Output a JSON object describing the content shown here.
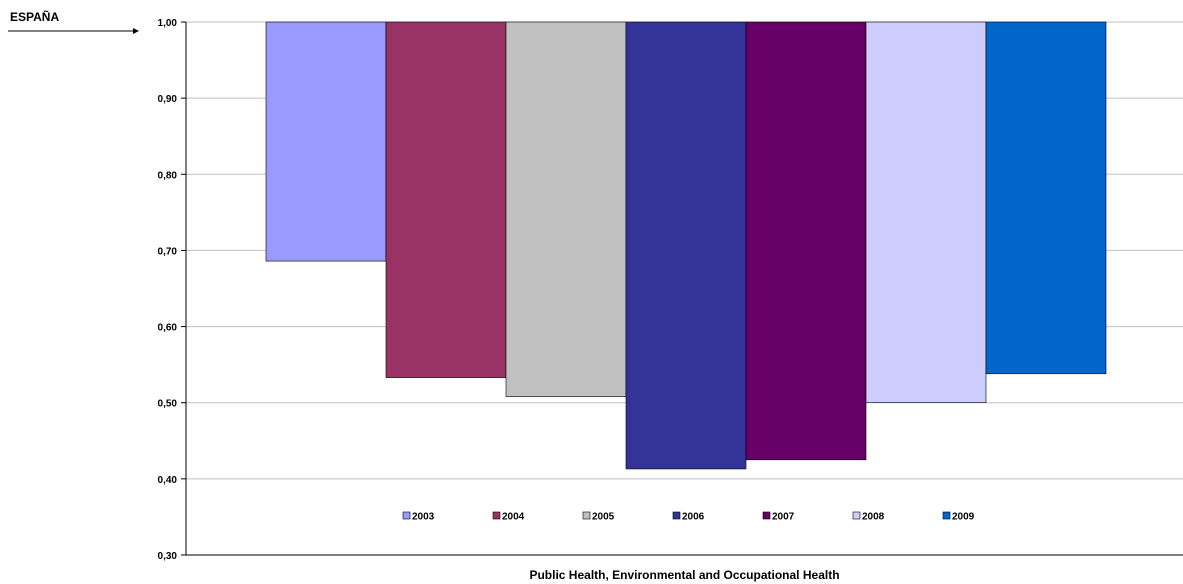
{
  "chart_data": {
    "type": "bar",
    "annotation": "ESPAÑA",
    "xlabel": "Public Health, Environmental and Occupational Health",
    "ylabel": "",
    "baseline": 1.0,
    "ylim": [
      0.3,
      1.0
    ],
    "yticks": [
      {
        "value": 0.3,
        "label": "0,30"
      },
      {
        "value": 0.4,
        "label": "0,40"
      },
      {
        "value": 0.5,
        "label": "0,50"
      },
      {
        "value": 0.6,
        "label": "0,60"
      },
      {
        "value": 0.7,
        "label": "0,70"
      },
      {
        "value": 0.8,
        "label": "0,80"
      },
      {
        "value": 0.9,
        "label": "0,90"
      },
      {
        "value": 1.0,
        "label": "1,00"
      }
    ],
    "grid": true,
    "legend_position": "bottom-center",
    "series": [
      {
        "name": "2003",
        "value": 0.686,
        "color": "#9999FF"
      },
      {
        "name": "2004",
        "value": 0.533,
        "color": "#993366"
      },
      {
        "name": "2005",
        "value": 0.508,
        "color": "#C0C0C0"
      },
      {
        "name": "2006",
        "value": 0.413,
        "color": "#333399"
      },
      {
        "name": "2007",
        "value": 0.425,
        "color": "#660066"
      },
      {
        "name": "2008",
        "value": 0.5,
        "color": "#CCCCFF"
      },
      {
        "name": "2009",
        "value": 0.538,
        "color": "#0066CC"
      }
    ]
  }
}
